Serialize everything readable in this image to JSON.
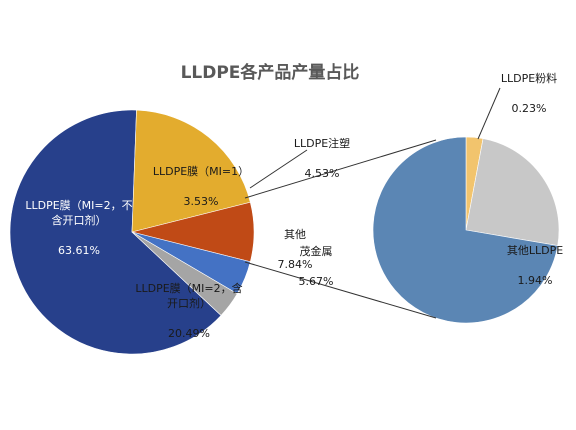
{
  "chart_data": {
    "type": "pie",
    "title": "LLDPE各产品产量占比",
    "main_pie": {
      "slices": [
        {
          "label": "LLDPE膜（MI=2，不\n含开口剂）",
          "value": "63.61%",
          "percent": 63.61,
          "color": "#27408b",
          "label_color": "#ffffff"
        },
        {
          "label": "LLDPE膜（MI=2，含\n开口剂）",
          "value": "20.49%",
          "percent": 20.49,
          "color": "#e3ac2e",
          "label_color": "#1a1a1a"
        },
        {
          "label": "其他",
          "value": "7.84%",
          "percent": 7.84,
          "color": "#c04a16",
          "label_color": "#1a1a1a"
        },
        {
          "label": "LLDPE注塑",
          "value": "4.53%",
          "percent": 4.53,
          "color": "#4472c4",
          "label_color": "#1a1a1a"
        },
        {
          "label": "LLDPE膜（MI=1）",
          "value": "3.53%",
          "percent": 3.53,
          "color": "#a5a5a5",
          "label_color": "#1a1a1a"
        }
      ]
    },
    "breakout_pie": {
      "slices": [
        {
          "label": "茂金属",
          "value": "5.67%",
          "percent": 5.67,
          "color": "#5b86b4"
        },
        {
          "label": "其他LLDPE",
          "value": "1.94%",
          "percent": 1.94,
          "color": "#c8c8c8"
        },
        {
          "label": "LLDPE粉料",
          "value": "0.23%",
          "percent": 0.23,
          "color": "#f2c46d"
        }
      ]
    },
    "legend": "none"
  }
}
